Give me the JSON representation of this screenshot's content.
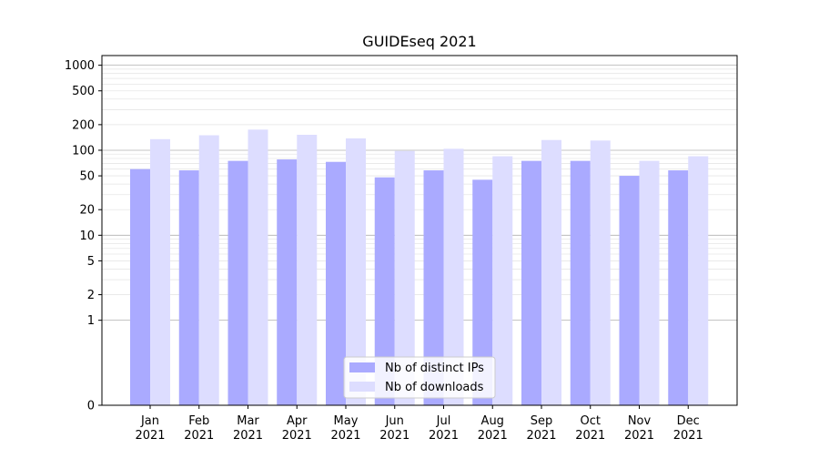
{
  "chart_data": {
    "type": "bar",
    "title": "GUIDEseq 2021",
    "xlabel": "",
    "ylabel": "",
    "yscale": "symlog",
    "ylim": [
      0,
      1300
    ],
    "yticks": [
      0,
      1,
      2,
      5,
      10,
      20,
      50,
      100,
      200,
      500,
      1000
    ],
    "ytick_labels": [
      "0",
      "1",
      "2",
      "5",
      "10",
      "20",
      "50",
      "100",
      "200",
      "500",
      "1000"
    ],
    "categories": [
      "Jan\n2021",
      "Feb\n2021",
      "Mar\n2021",
      "Apr\n2021",
      "May\n2021",
      "Jun\n2021",
      "Jul\n2021",
      "Aug\n2021",
      "Sep\n2021",
      "Oct\n2021",
      "Nov\n2021",
      "Dec\n2021"
    ],
    "series": [
      {
        "name": "Nb of distinct IPs",
        "color": "#aaaaff",
        "values": [
          60,
          58,
          75,
          78,
          73,
          48,
          58,
          45,
          75,
          75,
          50,
          58
        ]
      },
      {
        "name": "Nb of downloads",
        "color": "#ddddff",
        "values": [
          135,
          150,
          175,
          152,
          138,
          98,
          104,
          85,
          132,
          130,
          75,
          85
        ]
      }
    ],
    "legend_position": "lower-center",
    "grid": true
  }
}
